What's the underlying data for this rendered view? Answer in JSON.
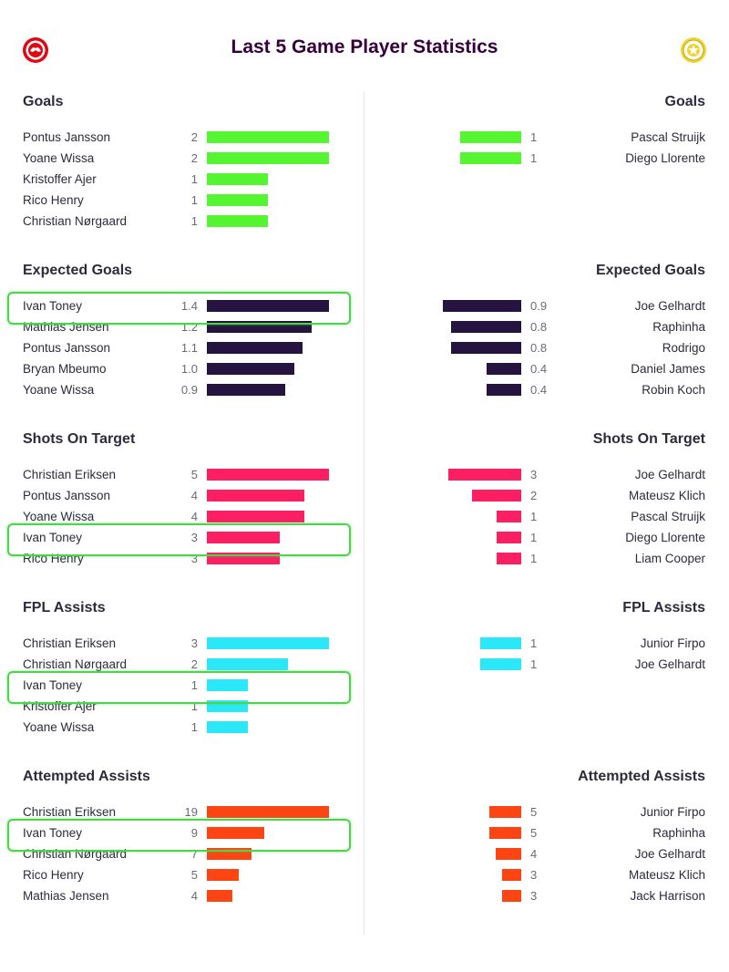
{
  "page_title": "Last 5 Game Player Statistics",
  "icons": {
    "home_crest": "brentford-crest-icon",
    "away_crest": "leeds-crest-icon"
  },
  "chart_data": [
    {
      "type": "bar",
      "title": "Goals",
      "color": "#56f531",
      "scale_max": 2,
      "left": [
        {
          "name": "Pontus Jansson",
          "value": "2",
          "num": 2
        },
        {
          "name": "Yoane Wissa",
          "value": "2",
          "num": 2
        },
        {
          "name": "Kristoffer Ajer",
          "value": "1",
          "num": 1
        },
        {
          "name": "Rico Henry",
          "value": "1",
          "num": 1
        },
        {
          "name": "Christian Nørgaard",
          "value": "1",
          "num": 1
        }
      ],
      "right": [
        {
          "name": "Pascal Struijk",
          "value": "1",
          "num": 1
        },
        {
          "name": "Diego Llorente",
          "value": "1",
          "num": 1
        }
      ],
      "highlight": []
    },
    {
      "type": "bar",
      "title": "Expected Goals",
      "color": "#24143f",
      "scale_max": 1.4,
      "left": [
        {
          "name": "Ivan Toney",
          "value": "1.4",
          "num": 1.4
        },
        {
          "name": "Mathias Jensen",
          "value": "1.2",
          "num": 1.2
        },
        {
          "name": "Pontus Jansson",
          "value": "1.1",
          "num": 1.1
        },
        {
          "name": "Bryan Mbeumo",
          "value": "1.0",
          "num": 1.0
        },
        {
          "name": "Yoane Wissa",
          "value": "0.9",
          "num": 0.9
        }
      ],
      "right": [
        {
          "name": "Joe Gelhardt",
          "value": "0.9",
          "num": 0.9
        },
        {
          "name": "Raphinha",
          "value": "0.8",
          "num": 0.8
        },
        {
          "name": "Rodrigo",
          "value": "0.8",
          "num": 0.8
        },
        {
          "name": "Daniel James",
          "value": "0.4",
          "num": 0.4
        },
        {
          "name": "Robin Koch",
          "value": "0.4",
          "num": 0.4
        }
      ],
      "highlight": [
        0
      ]
    },
    {
      "type": "bar",
      "title": "Shots On Target",
      "color": "#fc1f64",
      "scale_max": 5,
      "left": [
        {
          "name": "Christian Eriksen",
          "value": "5",
          "num": 5
        },
        {
          "name": "Pontus Jansson",
          "value": "4",
          "num": 4
        },
        {
          "name": "Yoane Wissa",
          "value": "4",
          "num": 4
        },
        {
          "name": "Ivan Toney",
          "value": "3",
          "num": 3
        },
        {
          "name": "Rico Henry",
          "value": "3",
          "num": 3
        }
      ],
      "right": [
        {
          "name": "Joe Gelhardt",
          "value": "3",
          "num": 3
        },
        {
          "name": "Mateusz Klich",
          "value": "2",
          "num": 2
        },
        {
          "name": "Pascal Struijk",
          "value": "1",
          "num": 1
        },
        {
          "name": "Diego Llorente",
          "value": "1",
          "num": 1
        },
        {
          "name": "Liam Cooper",
          "value": "1",
          "num": 1
        }
      ],
      "highlight": [
        3
      ]
    },
    {
      "type": "bar",
      "title": "FPL Assists",
      "color": "#2be8f8",
      "scale_max": 3,
      "left": [
        {
          "name": "Christian Eriksen",
          "value": "3",
          "num": 3
        },
        {
          "name": "Christian Nørgaard",
          "value": "2",
          "num": 2
        },
        {
          "name": "Ivan Toney",
          "value": "1",
          "num": 1
        },
        {
          "name": "Kristoffer Ajer",
          "value": "1",
          "num": 1
        },
        {
          "name": "Yoane Wissa",
          "value": "1",
          "num": 1
        }
      ],
      "right": [
        {
          "name": "Junior Firpo",
          "value": "1",
          "num": 1
        },
        {
          "name": "Joe Gelhardt",
          "value": "1",
          "num": 1
        }
      ],
      "highlight": [
        2
      ]
    },
    {
      "type": "bar",
      "title": "Attempted Assists",
      "color": "#fc4513",
      "scale_max": 19,
      "left": [
        {
          "name": "Christian Eriksen",
          "value": "19",
          "num": 19
        },
        {
          "name": "Ivan Toney",
          "value": "9",
          "num": 9
        },
        {
          "name": "Christian Nørgaard",
          "value": "7",
          "num": 7
        },
        {
          "name": "Rico Henry",
          "value": "5",
          "num": 5
        },
        {
          "name": "Mathias Jensen",
          "value": "4",
          "num": 4
        }
      ],
      "right": [
        {
          "name": "Junior Firpo",
          "value": "5",
          "num": 5
        },
        {
          "name": "Raphinha",
          "value": "5",
          "num": 5
        },
        {
          "name": "Joe Gelhardt",
          "value": "4",
          "num": 4
        },
        {
          "name": "Mateusz Klich",
          "value": "3",
          "num": 3
        },
        {
          "name": "Jack Harrison",
          "value": "3",
          "num": 3
        }
      ],
      "highlight": [
        1
      ]
    }
  ]
}
